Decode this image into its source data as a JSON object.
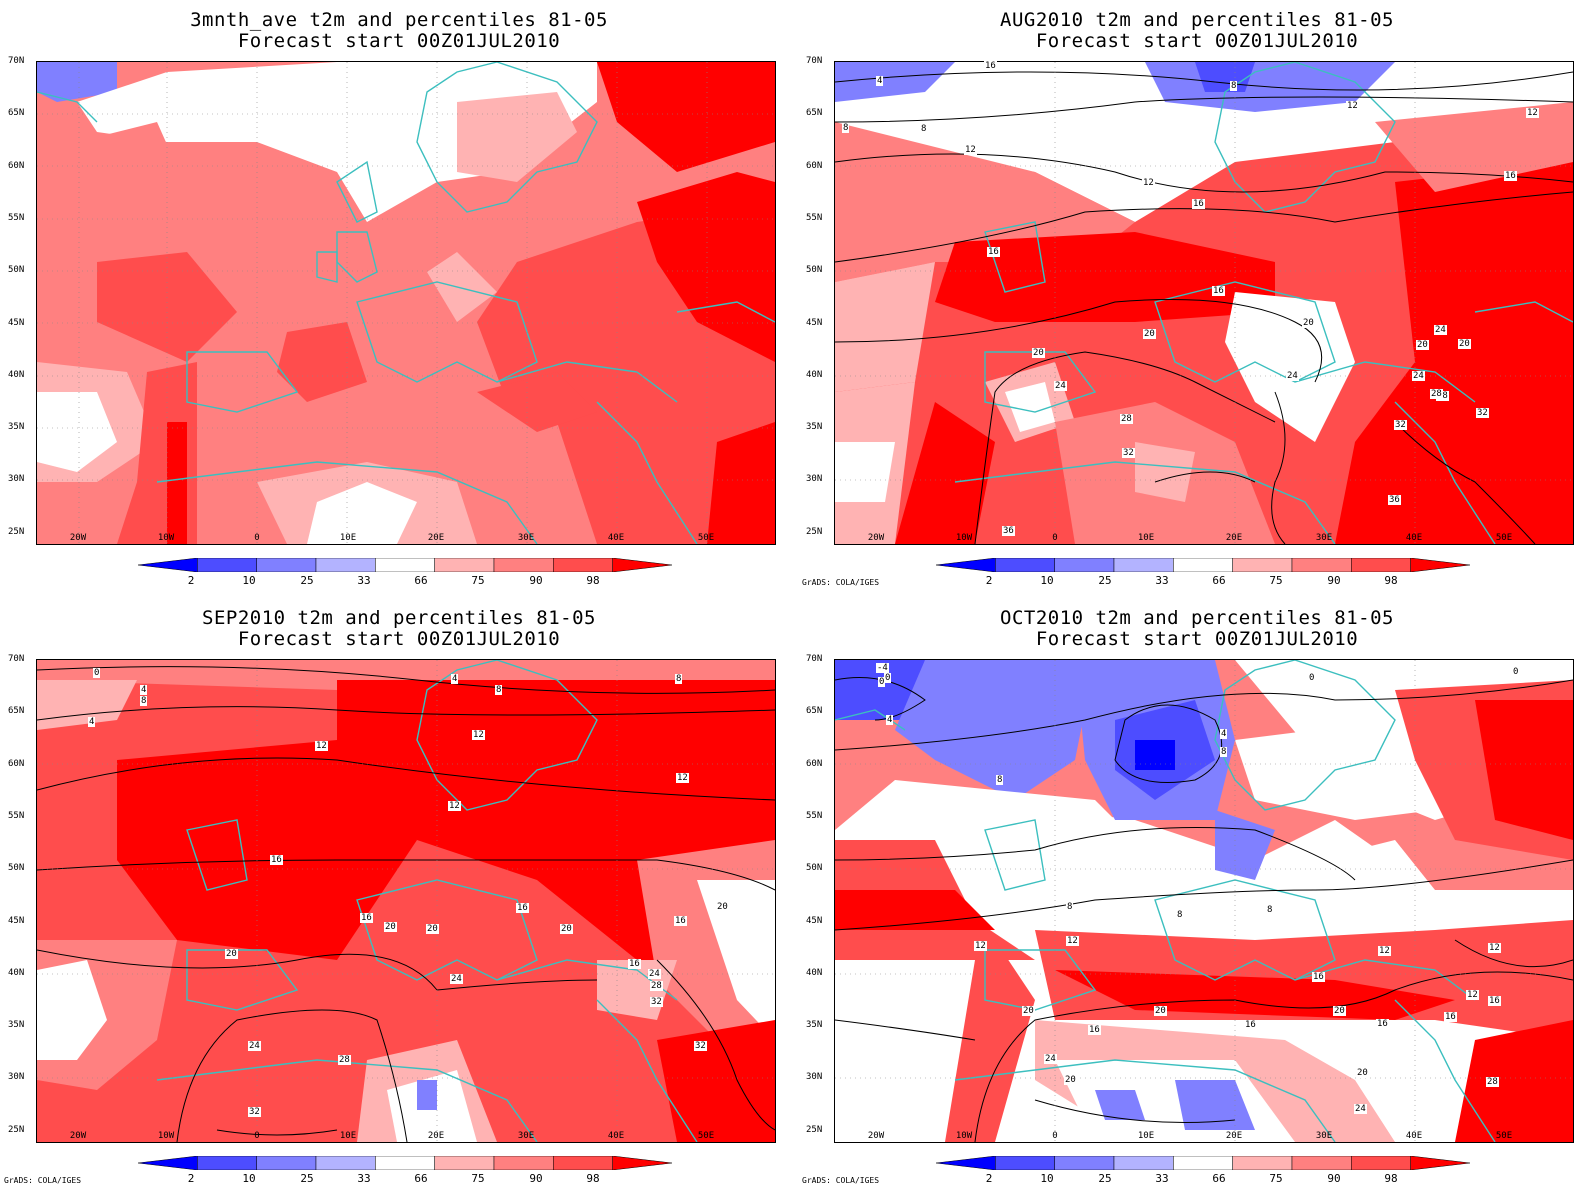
{
  "panels": [
    {
      "id": "p1",
      "title1": "3mnth_ave t2m and percentiles 81-05",
      "title2": "Forecast start 00Z01JUL2010",
      "contour_labels": [],
      "credit": ""
    },
    {
      "id": "p2",
      "title1": "AUG2010 t2m and percentiles 81-05",
      "title2": "Forecast start 00Z01JUL2010",
      "contour_labels": [
        "4",
        "8",
        "8",
        "8",
        "12",
        "12",
        "12",
        "12",
        "16",
        "16",
        "16",
        "16",
        "16",
        "20",
        "20",
        "20",
        "20",
        "20",
        "24",
        "24",
        "24",
        "24",
        "28",
        "28",
        "28",
        "32",
        "32",
        "32",
        "36",
        "36"
      ],
      "credit": "GrADS: COLA/IGES"
    },
    {
      "id": "p3",
      "title1": "SEP2010 t2m and percentiles 81-05",
      "title2": "Forecast start 00Z01JUL2010",
      "contour_labels": [
        "0",
        "4",
        "4",
        "4",
        "8",
        "8",
        "8",
        "12",
        "12",
        "12",
        "12",
        "16",
        "16",
        "16",
        "16",
        "16",
        "20",
        "20",
        "20",
        "20",
        "20",
        "24",
        "24",
        "24",
        "28",
        "28",
        "32",
        "32",
        "32"
      ],
      "credit": "GrADS: COLA/IGES"
    },
    {
      "id": "p4",
      "title1": "OCT2010 t2m and percentiles 81-05",
      "title2": "Forecast start 00Z01JUL2010",
      "contour_labels": [
        "-4",
        "0",
        "0",
        "0",
        "0",
        "4",
        "4",
        "8",
        "8",
        "8",
        "8",
        "8",
        "12",
        "12",
        "12",
        "12",
        "12",
        "16",
        "16",
        "16",
        "16",
        "16",
        "16",
        "20",
        "20",
        "20",
        "20",
        "20",
        "24",
        "24",
        "28"
      ],
      "credit": "GrADS: COLA/IGES"
    }
  ],
  "lat_labels": [
    "70N",
    "65N",
    "60N",
    "55N",
    "50N",
    "45N",
    "40N",
    "35N",
    "30N",
    "25N"
  ],
  "lon_labels": [
    "20W",
    "10W",
    "0",
    "10E",
    "20E",
    "30E",
    "40E",
    "50E"
  ],
  "colorbar": {
    "labels": [
      "2",
      "10",
      "25",
      "33",
      "66",
      "75",
      "90",
      "98"
    ],
    "colors": [
      "#0000ff",
      "#4d4dff",
      "#8080ff",
      "#b3b3ff",
      "#ffffff",
      "#ffb3b3",
      "#ff8080",
      "#ff4d4d",
      "#ff0000"
    ]
  },
  "coastline_color": "#3cbfbf",
  "contour_color": "#000000"
}
